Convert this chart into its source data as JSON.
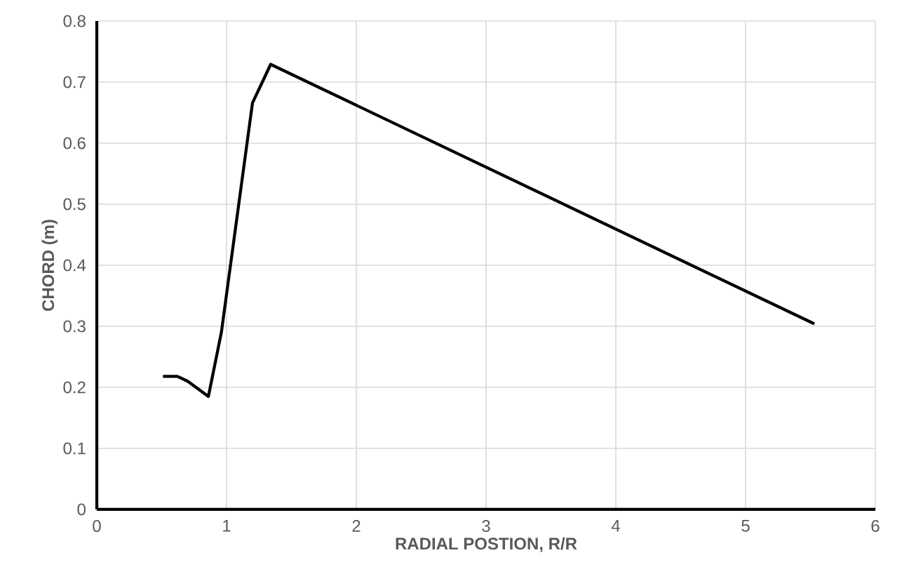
{
  "chart_data": {
    "type": "line",
    "xlabel": "RADIAL POSTION, R/R",
    "ylabel": "CHORD (m)",
    "xlim": [
      0,
      6
    ],
    "ylim": [
      0,
      0.8
    ],
    "xticks": [
      0,
      1,
      2,
      3,
      4,
      5,
      6
    ],
    "yticks": [
      0,
      0.1,
      0.2,
      0.3,
      0.4,
      0.5,
      0.6,
      0.7,
      0.8
    ],
    "grid": true,
    "marker": "none",
    "line_style": "solid",
    "series": [
      {
        "color": "#000000",
        "x": [
          0.51,
          0.62,
          0.7,
          0.86,
          0.96,
          1.2,
          1.34,
          5.53
        ],
        "values": [
          0.218,
          0.218,
          0.21,
          0.185,
          0.29,
          0.666,
          0.729,
          0.304
        ]
      }
    ]
  }
}
